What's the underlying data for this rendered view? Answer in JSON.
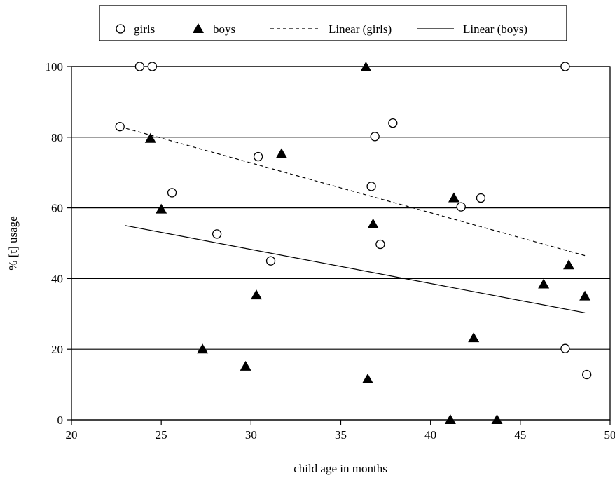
{
  "chart_data": {
    "type": "scatter",
    "title": "",
    "xlabel": "child age in months",
    "ylabel": "% [t] usage",
    "xlim": [
      20,
      50
    ],
    "ylim": [
      0,
      100
    ],
    "xticks": [
      20,
      25,
      30,
      35,
      40,
      45,
      50
    ],
    "yticks": [
      0,
      20,
      40,
      60,
      80,
      100
    ],
    "grid": "horizontal",
    "legend_position": "top",
    "series": [
      {
        "name": "girls",
        "marker": "open-circle",
        "points": [
          {
            "x": 22.7,
            "y": 83
          },
          {
            "x": 23.8,
            "y": 100
          },
          {
            "x": 24.5,
            "y": 100
          },
          {
            "x": 25.6,
            "y": 64.3
          },
          {
            "x": 28.1,
            "y": 52.6
          },
          {
            "x": 30.4,
            "y": 74.5
          },
          {
            "x": 31.1,
            "y": 45
          },
          {
            "x": 36.7,
            "y": 66.1
          },
          {
            "x": 36.9,
            "y": 80.2
          },
          {
            "x": 37.2,
            "y": 49.7
          },
          {
            "x": 37.9,
            "y": 84
          },
          {
            "x": 41.7,
            "y": 60.3
          },
          {
            "x": 42.8,
            "y": 62.8
          },
          {
            "x": 47.5,
            "y": 100
          },
          {
            "x": 47.5,
            "y": 20.2
          },
          {
            "x": 48.7,
            "y": 12.8
          }
        ]
      },
      {
        "name": "boys",
        "marker": "filled-triangle",
        "points": [
          {
            "x": 24.4,
            "y": 79.8
          },
          {
            "x": 25,
            "y": 59.8
          },
          {
            "x": 27.3,
            "y": 20.2
          },
          {
            "x": 29.7,
            "y": 15.3
          },
          {
            "x": 30.3,
            "y": 35.5
          },
          {
            "x": 31.7,
            "y": 75.5
          },
          {
            "x": 36.4,
            "y": 100
          },
          {
            "x": 36.5,
            "y": 11.7
          },
          {
            "x": 36.8,
            "y": 55.6
          },
          {
            "x": 41.1,
            "y": 0.2
          },
          {
            "x": 41.3,
            "y": 63
          },
          {
            "x": 42.4,
            "y": 23.4
          },
          {
            "x": 43.7,
            "y": 0.2
          },
          {
            "x": 46.3,
            "y": 38.6
          },
          {
            "x": 47.7,
            "y": 44
          },
          {
            "x": 48.6,
            "y": 35.2
          }
        ]
      }
    ],
    "trendlines": [
      {
        "name": "Linear (girls)",
        "style": "dashed",
        "x": [
          22.7,
          48.6
        ],
        "y": [
          83,
          46.5
        ]
      },
      {
        "name": "Linear (boys)",
        "style": "solid",
        "x": [
          23,
          48.6
        ],
        "y": [
          55,
          30.3
        ]
      }
    ]
  }
}
